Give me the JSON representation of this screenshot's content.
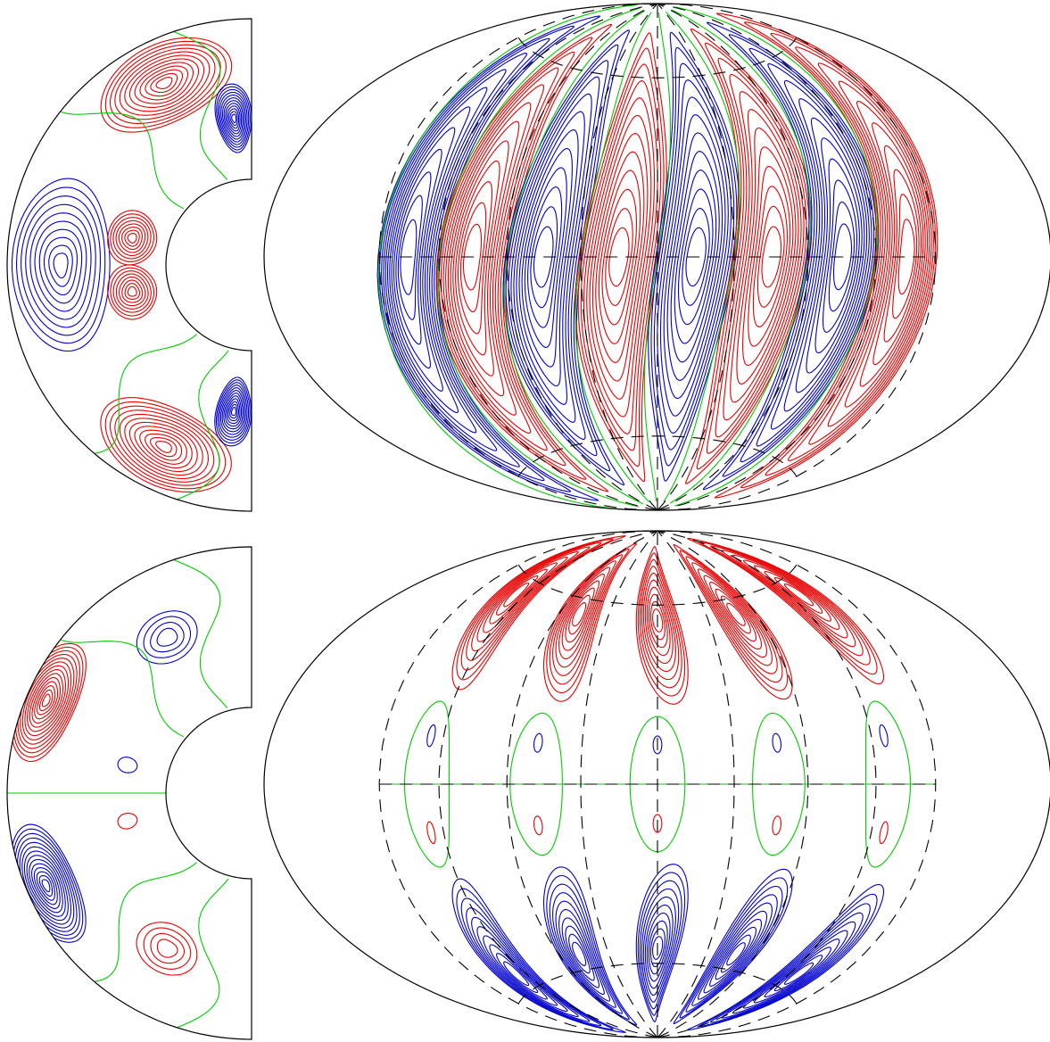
{
  "figure": {
    "contour_colors": {
      "positive": "#e60000",
      "negative": "#0000cc",
      "zero": "#00cc00",
      "outline": "#000000"
    },
    "panels": [
      {
        "id": "top-meridional-section",
        "kind": "meridional-half-annulus",
        "lobes": [
          {
            "sign": "positive",
            "levels": 12,
            "theta": 0.45,
            "r": 0.82,
            "spread_theta": 0.35,
            "spread_r": 0.16
          },
          {
            "sign": "negative",
            "levels": 12,
            "theta": 0.12,
            "r": 0.6,
            "spread_theta": 0.12,
            "spread_r": 0.14
          },
          {
            "sign": "negative",
            "levels": 10,
            "theta": 1.57,
            "r": 0.78,
            "spread_theta": 0.45,
            "spread_r": 0.2
          },
          {
            "sign": "positive",
            "levels": 8,
            "theta": 1.35,
            "r": 0.5,
            "spread_theta": 0.22,
            "spread_r": 0.1
          },
          {
            "sign": "positive",
            "levels": 8,
            "theta": 1.79,
            "r": 0.5,
            "spread_theta": 0.22,
            "spread_r": 0.1
          },
          {
            "sign": "positive",
            "levels": 12,
            "theta": 2.69,
            "r": 0.82,
            "spread_theta": 0.35,
            "spread_r": 0.16
          },
          {
            "sign": "negative",
            "levels": 12,
            "theta": 3.02,
            "r": 0.6,
            "spread_theta": 0.12,
            "spread_r": 0.14
          }
        ]
      },
      {
        "id": "top-surface-map",
        "kind": "hammer-projection",
        "bands": [
          "negative",
          "positive",
          "negative",
          "positive",
          "negative",
          "positive",
          "negative",
          "positive"
        ],
        "levels": 12
      },
      {
        "id": "bottom-meridional-section",
        "kind": "meridional-half-annulus",
        "lobes": [
          {
            "sign": "positive",
            "levels": 14,
            "theta": 1.15,
            "r": 0.92,
            "spread_theta": 0.28,
            "spread_r": 0.12
          },
          {
            "sign": "negative",
            "levels": 14,
            "theta": 1.99,
            "r": 0.92,
            "spread_theta": 0.28,
            "spread_r": 0.12
          },
          {
            "sign": "negative",
            "levels": 4,
            "theta": 0.5,
            "r": 0.72,
            "spread_theta": 0.18,
            "spread_r": 0.1
          },
          {
            "sign": "positive",
            "levels": 4,
            "theta": 2.64,
            "r": 0.72,
            "spread_theta": 0.18,
            "spread_r": 0.1
          },
          {
            "sign": "negative",
            "levels": 1,
            "theta": 1.35,
            "r": 0.52,
            "spread_theta": 0.06,
            "spread_r": 0.04
          },
          {
            "sign": "positive",
            "levels": 1,
            "theta": 1.79,
            "r": 0.52,
            "spread_theta": 0.06,
            "spread_r": 0.04
          }
        ]
      },
      {
        "id": "bottom-surface-map",
        "kind": "hammer-projection",
        "cells": 5,
        "levels": 10
      }
    ]
  }
}
